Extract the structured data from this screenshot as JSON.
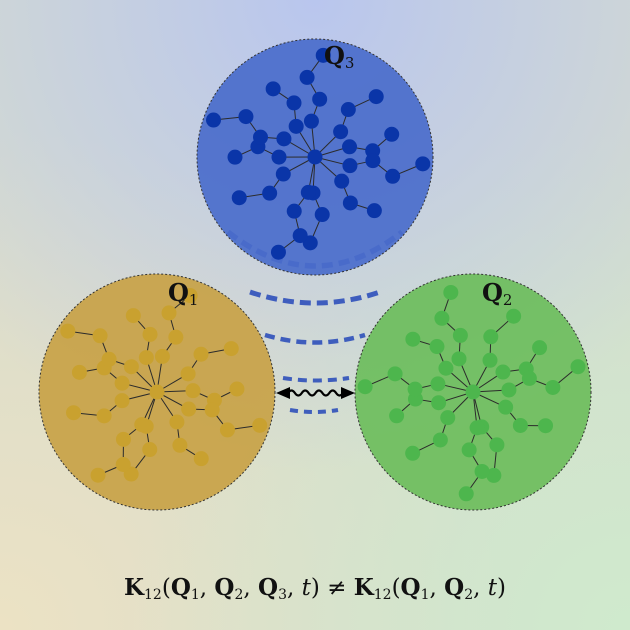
{
  "clusters": [
    {
      "id": "q1",
      "label_main": "Q",
      "label_sub": "1",
      "color": "#c9a12f",
      "fill": "#c8a246"
    },
    {
      "id": "q2",
      "label_main": "Q",
      "label_sub": "2",
      "color": "#4db64d",
      "fill": "#6cbd5c"
    },
    {
      "id": "q3",
      "label_main": "Q",
      "label_sub": "3",
      "color": "#0a35a8",
      "fill": "#4a6ccb"
    }
  ],
  "coupling_color": "#2448b8",
  "interaction_color": "#000000",
  "equation": {
    "parts": [
      {
        "t": "K",
        "b": true
      },
      {
        "t": "12",
        "sub": true
      },
      {
        "t": "("
      },
      {
        "t": "Q",
        "b": true
      },
      {
        "t": "1",
        "sub": true
      },
      {
        "t": ", "
      },
      {
        "t": "Q",
        "b": true
      },
      {
        "t": "2",
        "sub": true
      },
      {
        "t": ", "
      },
      {
        "t": "Q",
        "b": true
      },
      {
        "t": "3",
        "sub": true
      },
      {
        "t": ", "
      },
      {
        "t": "t",
        "i": true
      },
      {
        "t": ") ≠ "
      },
      {
        "t": "K",
        "b": true
      },
      {
        "t": "12",
        "sub": true
      },
      {
        "t": "("
      },
      {
        "t": "Q",
        "b": true
      },
      {
        "t": "1",
        "sub": true
      },
      {
        "t": ", "
      },
      {
        "t": "Q",
        "b": true
      },
      {
        "t": "2",
        "sub": true
      },
      {
        "t": ", "
      },
      {
        "t": "t",
        "i": true
      },
      {
        "t": ")"
      }
    ]
  }
}
